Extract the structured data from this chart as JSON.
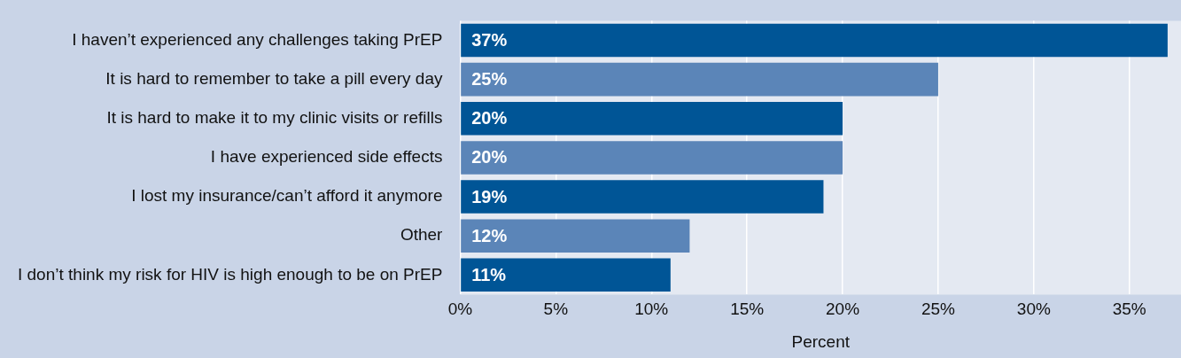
{
  "chart_data": {
    "type": "bar",
    "orientation": "horizontal",
    "xlabel": "Percent",
    "categories": [
      "I haven’t experienced any challenges taking PrEP",
      "It is hard to remember to take a pill every day",
      "It is hard to make it to my clinic visits or refills",
      "I have experienced side effects",
      "I lost my insurance/can’t afford it anymore",
      "Other",
      "I don’t think my risk for HIV is high enough to be on PrEP"
    ],
    "values": [
      37,
      25,
      20,
      20,
      19,
      12,
      11
    ],
    "value_labels": [
      "37%",
      "25%",
      "20%",
      "20%",
      "19%",
      "12%",
      "11%"
    ],
    "colors": [
      "#005596",
      "#5b85b8",
      "#005596",
      "#5b85b8",
      "#005596",
      "#5b85b8",
      "#005596"
    ],
    "xlim": [
      0,
      37.7
    ],
    "xticks": [
      {
        "value": 0,
        "label": "0%"
      },
      {
        "value": 5,
        "label": "5%"
      },
      {
        "value": 10,
        "label": "10%"
      },
      {
        "value": 15,
        "label": "15%"
      },
      {
        "value": 20,
        "label": "20%"
      },
      {
        "value": 25,
        "label": "25%"
      },
      {
        "value": 30,
        "label": "30%"
      },
      {
        "value": 35,
        "label": "35%"
      }
    ],
    "grid": true,
    "legend": false
  }
}
